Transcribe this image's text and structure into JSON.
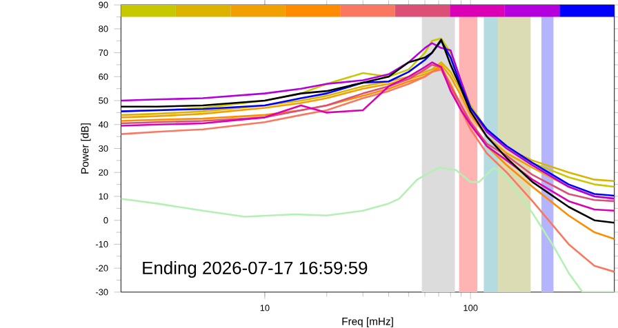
{
  "chart_data": {
    "type": "line",
    "xlabel": "Freq [mHz]",
    "ylabel": "Power [dB]",
    "log": "x",
    "marker": "none",
    "xlim": [
      2,
      500
    ],
    "ylim": [
      -30,
      90
    ],
    "xticks": [
      10,
      100
    ],
    "yticks": [
      -30,
      -20,
      -10,
      0,
      10,
      20,
      30,
      40,
      50,
      60,
      70,
      80,
      90
    ],
    "x": [
      2,
      3,
      5,
      10,
      15,
      20,
      30,
      40,
      50,
      60,
      65,
      72,
      80,
      90,
      100,
      120,
      150,
      200,
      300,
      400,
      500
    ],
    "series": [
      {
        "color": "#c8c800",
        "values": [
          45.5,
          46,
          47,
          50,
          53,
          57,
          61.5,
          60,
          63,
          70,
          75,
          76,
          70,
          58,
          48,
          38,
          30,
          24,
          18,
          15,
          14
        ]
      },
      {
        "color": "#dcb400",
        "values": [
          44,
          44.5,
          45.5,
          48,
          50,
          52,
          56,
          58,
          60,
          62,
          63,
          66,
          62,
          54,
          46,
          37,
          30,
          25,
          20,
          17,
          16.4
        ]
      },
      {
        "color": "#f0a000",
        "values": [
          43,
          43.5,
          44.5,
          47,
          49,
          51,
          55,
          57,
          59,
          61,
          62,
          65,
          60,
          52,
          44,
          35,
          28,
          22,
          14,
          10,
          9
        ]
      },
      {
        "color": "#ff8c00",
        "values": [
          41.5,
          42,
          42.5,
          44,
          46,
          48,
          52,
          55,
          58,
          60,
          62,
          64,
          57,
          48,
          40,
          31,
          23,
          14,
          2,
          -5,
          -7.8
        ]
      },
      {
        "color": "#fa7860",
        "values": [
          36,
          37,
          38,
          41,
          44,
          46,
          51,
          54,
          57,
          60,
          62,
          63,
          55,
          46,
          38,
          28,
          20,
          8,
          -10,
          -19,
          -21.5
        ]
      },
      {
        "color": "#dc5078",
        "values": [
          40.5,
          41,
          41.5,
          43,
          46,
          48,
          53,
          56,
          59,
          63,
          65,
          64,
          56,
          48,
          41,
          32,
          27,
          19,
          11,
          8.5,
          8
        ]
      },
      {
        "color": "#dc00b4",
        "values": [
          39.5,
          40,
          40.5,
          43,
          48,
          45,
          46,
          56,
          60,
          64,
          66,
          64,
          54,
          46,
          40,
          31,
          25,
          17,
          8,
          4.5,
          4
        ]
      },
      {
        "color": "#b400dc",
        "values": [
          50,
          50.5,
          51,
          53,
          55,
          57,
          58.5,
          61,
          66,
          72,
          74,
          72,
          71,
          58,
          47,
          37,
          30,
          23,
          14,
          10,
          9.1
        ]
      },
      {
        "color": "#0000ff",
        "values": [
          45.5,
          46,
          46.5,
          48,
          51,
          53,
          57.5,
          58,
          62,
          67,
          70,
          75,
          68,
          56,
          47,
          38,
          31,
          24,
          15,
          11,
          10.3
        ]
      },
      {
        "color": "#000000",
        "values": [
          47.5,
          47.5,
          48,
          50,
          53,
          54,
          57.5,
          60,
          66,
          68,
          70,
          75.5,
          65,
          55,
          45.5,
          35,
          26,
          16,
          5.6,
          0,
          -1
        ]
      },
      {
        "color": "#b4f0b4",
        "x": [
          2,
          3,
          5,
          8,
          14,
          20,
          30,
          40,
          45,
          55,
          70,
          85,
          100,
          110,
          130,
          150,
          200,
          250,
          300,
          350,
          500
        ],
        "values": [
          9,
          7,
          4,
          1.5,
          2.5,
          2,
          4,
          7,
          9,
          17,
          22,
          21,
          16,
          16,
          22,
          18,
          3,
          -10,
          -22,
          -30,
          -30
        ]
      }
    ],
    "bands": [
      {
        "axis": "x",
        "from": 58,
        "to": 84,
        "color": "#dcdcdc"
      },
      {
        "axis": "x",
        "from": 88,
        "to": 108,
        "color": "#ffb4b4"
      },
      {
        "axis": "x",
        "from": 116,
        "to": 136,
        "color": "#b4dce0"
      },
      {
        "axis": "x",
        "from": 136,
        "to": 196,
        "color": "#dcdcb4"
      },
      {
        "axis": "x",
        "from": 221,
        "to": 253,
        "color": "#b4b4ff"
      }
    ],
    "annotations": [
      "Ending 2026-07-17 16:59:59"
    ]
  }
}
